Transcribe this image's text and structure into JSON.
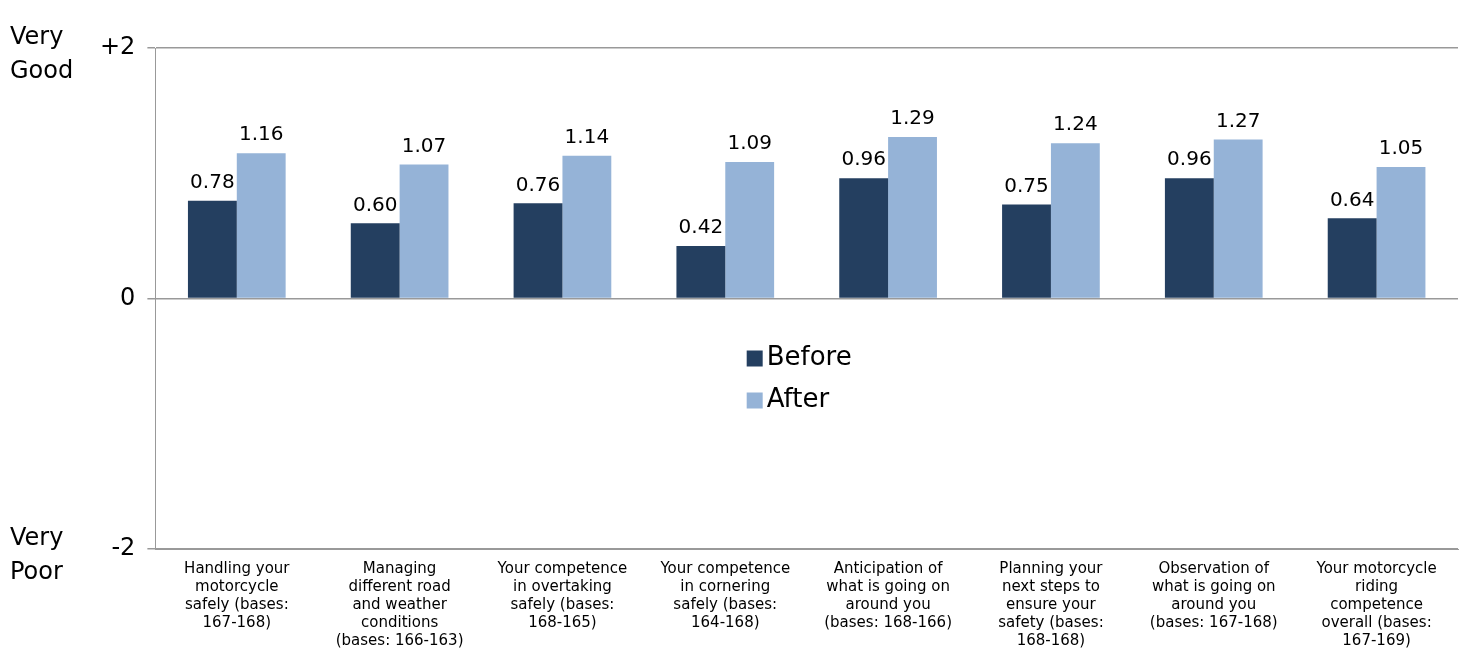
{
  "chart_data": {
    "type": "bar",
    "categories": [
      "Handling your motorcycle safely (bases: 167-168)",
      "Managing different road and weather conditions (bases: 166-163)",
      "Your competence in overtaking safely (bases: 168-165)",
      "Your competence in cornering safely (bases: 164-168)",
      "Anticipation of what is going on around you (bases: 168-166)",
      "Planning your next steps to ensure your safety (bases: 168-168)",
      "Observation of what is going on around you (bases: 167-168)",
      "Your motorcycle riding competence overall (bases: 167-169)"
    ],
    "series": [
      {
        "name": "Before",
        "color": "#243f60",
        "values": [
          0.78,
          0.6,
          0.76,
          0.42,
          0.96,
          0.75,
          0.96,
          0.64
        ],
        "value_labels": [
          "0.78",
          "0.60",
          "0.76",
          "0.42",
          "0.96",
          "0.75",
          "0.96",
          "0.64"
        ]
      },
      {
        "name": "After",
        "color": "#95b3d7",
        "values": [
          1.16,
          1.07,
          1.14,
          1.09,
          1.29,
          1.24,
          1.27,
          1.05
        ],
        "value_labels": [
          "1.16",
          "1.07",
          "1.14",
          "1.09",
          "1.29",
          "1.24",
          "1.27",
          "1.05"
        ]
      }
    ],
    "ylim": [
      -2,
      2
    ],
    "yticks": [
      {
        "value": 2,
        "label": "+2"
      },
      0,
      -2
    ],
    "annotations": [
      "Very Good",
      "Very Poor"
    ],
    "grid": "y",
    "legend": "center"
  }
}
